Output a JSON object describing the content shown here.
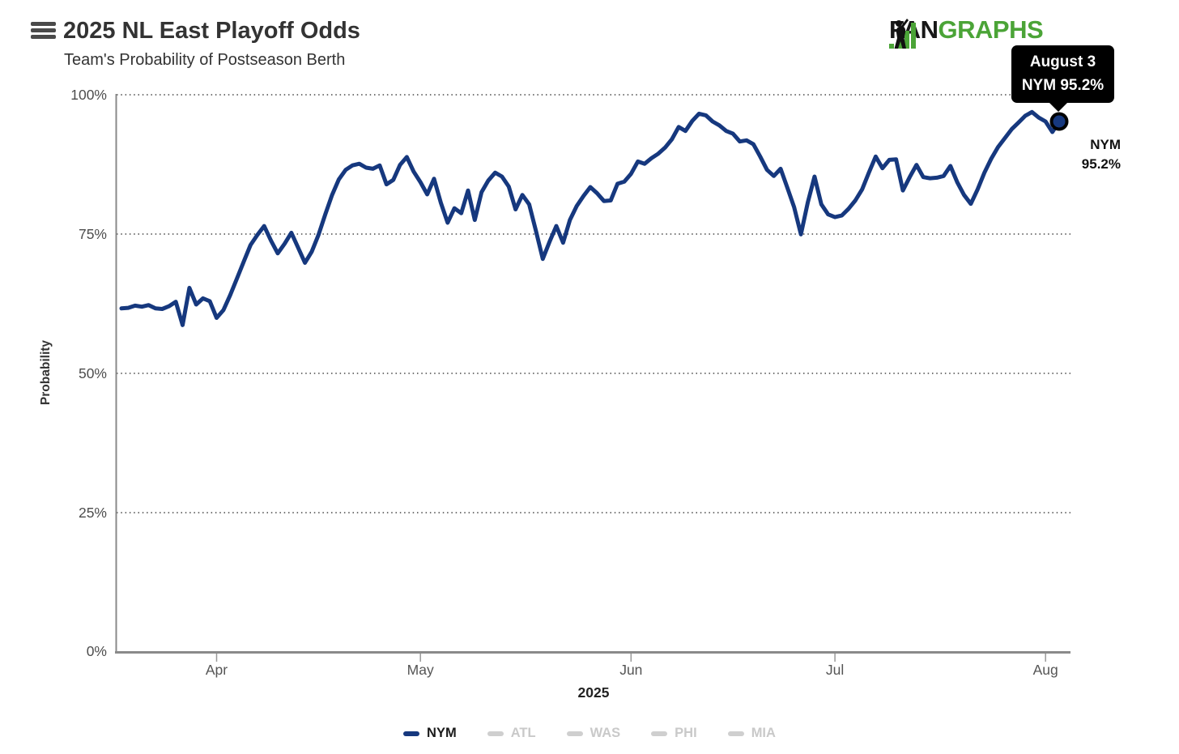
{
  "header": {
    "title": "2025 NL East Playoff Odds",
    "subtitle": "Team's Probability of Postseason Berth"
  },
  "logo": {
    "fan": "FAN",
    "graphs": "GRAPHS",
    "green": "#4BA437",
    "black": "#181818"
  },
  "tooltip": {
    "line1": "August 3",
    "line2": "NYM 95.2%"
  },
  "end_label": {
    "team": "NYM",
    "value": "95.2%"
  },
  "chart_data": {
    "type": "line",
    "title": "2025 NL East Playoff Odds",
    "subtitle": "Team's Probability of Postseason Berth",
    "xlabel": "2025",
    "ylabel": "Probability",
    "ylim": [
      0,
      100
    ],
    "y_tick_labels": [
      "100%",
      "75%",
      "50%",
      "25%",
      "0%"
    ],
    "x_ticks": [
      "Apr",
      "May",
      "Jun",
      "Jul",
      "Aug"
    ],
    "grid": "horizontal dotted",
    "legend_position": "bottom",
    "highlight": {
      "date": "August 3",
      "team": "NYM",
      "value": 95.2
    },
    "series": [
      {
        "name": "NYM",
        "color": "#16387E",
        "visible": true,
        "start_date": "2025-03-18",
        "end_date": "2025-08-03",
        "frequency": "daily",
        "values": [
          61.6,
          61.7,
          62.1,
          61.9,
          62.2,
          61.6,
          61.5,
          62.0,
          62.8,
          58.6,
          65.3,
          62.3,
          63.4,
          62.9,
          59.9,
          61.3,
          64.0,
          67.0,
          70.0,
          73.0,
          74.8,
          76.4,
          73.8,
          71.5,
          73.2,
          75.2,
          72.5,
          69.8,
          71.8,
          74.8,
          78.5,
          82.0,
          84.8,
          86.5,
          87.3,
          87.6,
          86.9,
          86.7,
          87.3,
          83.9,
          84.7,
          87.4,
          88.8,
          86.2,
          84.3,
          82.1,
          84.9,
          80.6,
          77.0,
          79.6,
          78.7,
          82.8,
          77.5,
          82.5,
          84.6,
          86.0,
          85.3,
          83.5,
          79.4,
          82.0,
          80.3,
          75.5,
          70.5,
          73.6,
          76.4,
          73.4,
          77.5,
          80.0,
          81.8,
          83.4,
          82.3,
          80.9,
          81.0,
          84.0,
          84.4,
          85.8,
          88.0,
          87.6,
          88.6,
          89.4,
          90.5,
          92.0,
          94.2,
          93.5,
          95.3,
          96.6,
          96.3,
          95.2,
          94.5,
          93.5,
          93.0,
          91.6,
          91.8,
          91.1,
          88.9,
          86.5,
          85.4,
          86.7,
          83.3,
          79.8,
          74.9,
          80.6,
          85.3,
          80.3,
          78.5,
          78.0,
          78.3,
          79.5,
          81.0,
          83.0,
          86.0,
          88.9,
          86.8,
          88.3,
          88.4,
          82.8,
          85.2,
          87.4,
          85.2,
          85.0,
          85.1,
          85.4,
          87.2,
          84.3,
          82.0,
          80.4,
          83.0,
          86.0,
          88.5,
          90.6,
          92.2,
          93.8,
          95.0,
          96.2,
          96.9,
          95.9,
          95.2,
          93.3,
          95.2
        ]
      },
      {
        "name": "ATL",
        "color": "#cccccc",
        "visible": false
      },
      {
        "name": "WAS",
        "color": "#cccccc",
        "visible": false
      },
      {
        "name": "PHI",
        "color": "#cccccc",
        "visible": false
      },
      {
        "name": "MIA",
        "color": "#cccccc",
        "visible": false
      }
    ]
  },
  "legend": {
    "items": [
      {
        "label": "NYM",
        "color": "#16387E",
        "text_color": "#1a1a1a",
        "active": true
      },
      {
        "label": "ATL",
        "color": "#cfcfcf",
        "text_color": "#c9c9c9",
        "active": false
      },
      {
        "label": "WAS",
        "color": "#cfcfcf",
        "text_color": "#c9c9c9",
        "active": false
      },
      {
        "label": "PHI",
        "color": "#cfcfcf",
        "text_color": "#c9c9c9",
        "active": false
      },
      {
        "label": "MIA",
        "color": "#cfcfcf",
        "text_color": "#c9c9c9",
        "active": false
      }
    ]
  }
}
